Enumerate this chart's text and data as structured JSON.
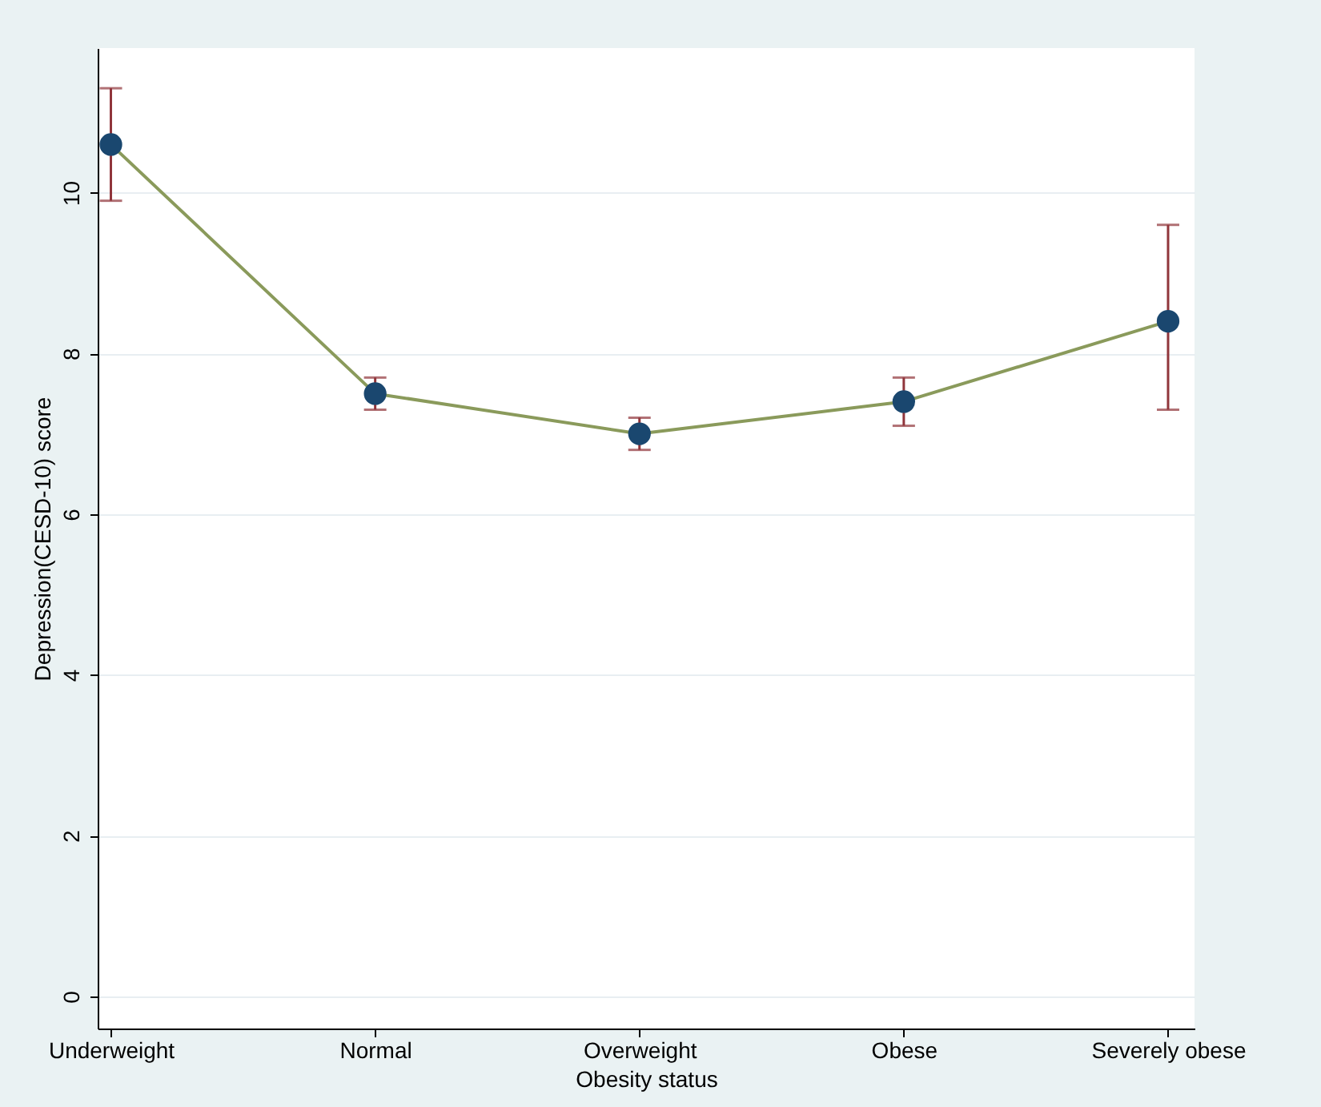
{
  "chart_data": {
    "type": "line",
    "xlabel": "Obesity status",
    "ylabel": "Depression(CESD-10) score",
    "categories": [
      "Underweight",
      "Normal",
      "Overweight",
      "Obese",
      "Severely obese"
    ],
    "series": [
      {
        "color": "#8a9a5b",
        "values": [
          10.6,
          7.5,
          7.0,
          7.4,
          8.4
        ],
        "errors": [
          [
            9.9,
            11.3
          ],
          [
            7.3,
            7.7
          ],
          [
            6.8,
            7.2
          ],
          [
            7.1,
            7.7
          ],
          [
            7.3,
            9.6
          ]
        ]
      }
    ],
    "ylim": [
      -0.4,
      11.8
    ],
    "yticks": [
      0,
      2,
      4,
      6,
      8,
      10
    ],
    "grid": "y",
    "marker": "circle",
    "line_style": "solid"
  }
}
